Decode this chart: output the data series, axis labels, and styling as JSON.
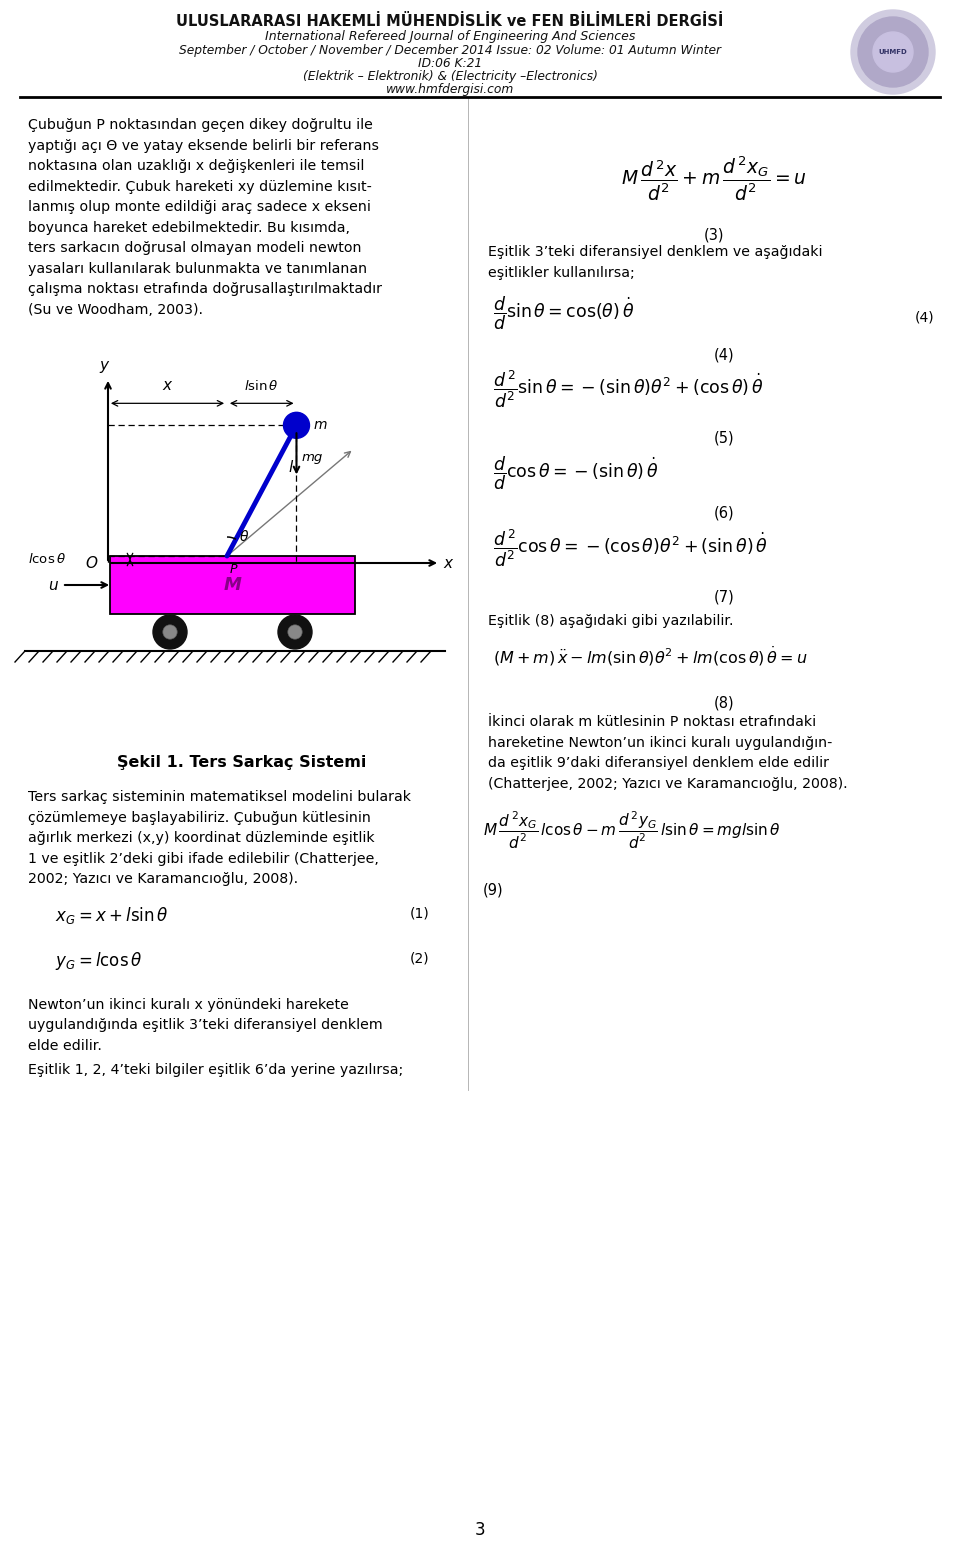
{
  "title_line1": "ULUSLARARASI HAKEMLİ MÜHENDİSLİK ve FEN BİLİMLERİ DERGİSİ",
  "title_line2": "International Refereed Journal of Engineering And Sciences",
  "title_line3": "September / October / November / December 2014 Issue: 02 Volume: 01 Autumn Winter",
  "title_line4": "ID:06 K:21",
  "title_line5": "(Elektrik – Elektronik) & (Electricity –Electronics)",
  "title_line6": "www.hmfdergisi.com",
  "bg_color": "#ffffff",
  "text_color": "#000000",
  "magenta": "#FF00FF",
  "blue_rod": "#0000CC",
  "blue_ball": "#0000EE",
  "page_number": "3",
  "left_para1": [
    "Çubuğun P noktasından geçen dikey doğrultu ile",
    "yaptığı açı Θ ve yatay eksende belirli bir referans",
    "noktasına olan uzaklığı x değişkenleri ile temsil",
    "edilmektedir. Çubuk hareketi xy düzlemine kısıt-",
    "lanmış olup monte edildiği araç sadece x ekseni",
    "boyunca hareket edebilmektedir. Bu kısımda,",
    "ters sarkacın doğrusal olmayan modeli newton",
    "yasaları kullanılarak bulunmakta ve tanımlanan",
    "çalışma noktası etrafında doğrusallaştırılmaktadır",
    "(Su ve Woodham, 2003)."
  ],
  "figure_caption": "Şekil 1. Ters Sarkaç Sistemi",
  "left_para2": [
    "Ters sarkaç sisteminin matematiksel modelini bularak",
    "çözümlemeye başlayabiliriz. Çubuğun kütlesinin",
    "ağırlık merkezi (x,y) koordinat düzleminde eşitlik",
    "1 ve eşitlik 2’deki gibi ifade edilebilir (Chatterjee,",
    "2002; Yazıcı ve Karamancıoğlu, 2008)."
  ],
  "newton_para": [
    "Newton’un ikinci kuralı x yönündeki harekete",
    "uygulandığında eşitlik 3’teki diferansiyel denklem",
    "elde edilir."
  ],
  "bottom_line": "Eşitlik 1, 2, 4’teki bilgiler eşitlik 6’da yerine yazılırsa;",
  "right_para1": [
    "Eşitlik 3’teki diferansiyel denklem ve aşağıdaki",
    "eşitlikler kullanılırsa;"
  ],
  "eq8_pre": "Eşitlik (8) aşağıdaki gibi yazılabilir.",
  "right_para3": [
    "İkinci olarak m kütlesinin P noktası etrafındaki",
    "hareketine Newton’un ikinci kuralı uygulandığın-",
    "da eşitlik 9’daki diferansiyel denklem elde edilir",
    "(Chatterjee, 2002; Yazıcı ve Karamancıoğlu, 2008)."
  ]
}
